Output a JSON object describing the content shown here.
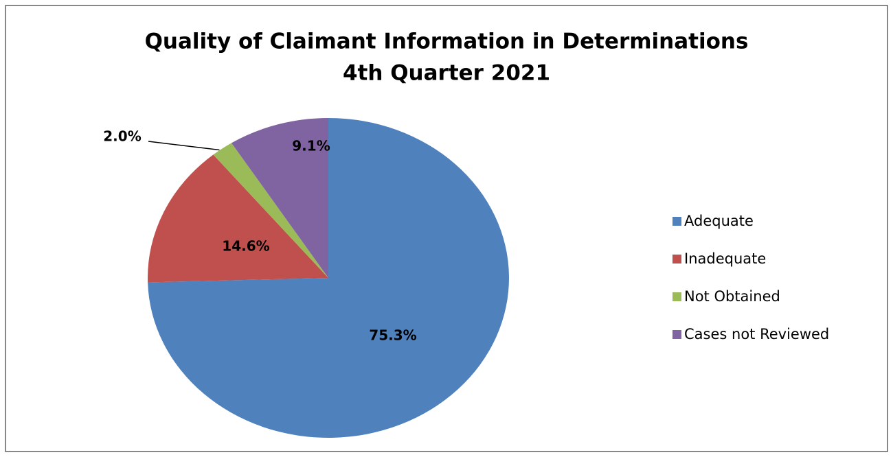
{
  "chart_data": {
    "type": "pie",
    "title": "Quality of Claimant Information in Determinations",
    "subtitle": "4th Quarter 2021",
    "categories": [
      "Adequate",
      "Inadequate",
      "Not Obtained",
      "Cases not Reviewed"
    ],
    "values": [
      75.3,
      14.6,
      2.0,
      9.1
    ],
    "value_labels": [
      "75.3%",
      "14.6%",
      "2.0%",
      "9.1%"
    ],
    "colors": [
      "#4f81bd",
      "#c0504d",
      "#9bbb59",
      "#8064a2"
    ],
    "legend": "right"
  }
}
